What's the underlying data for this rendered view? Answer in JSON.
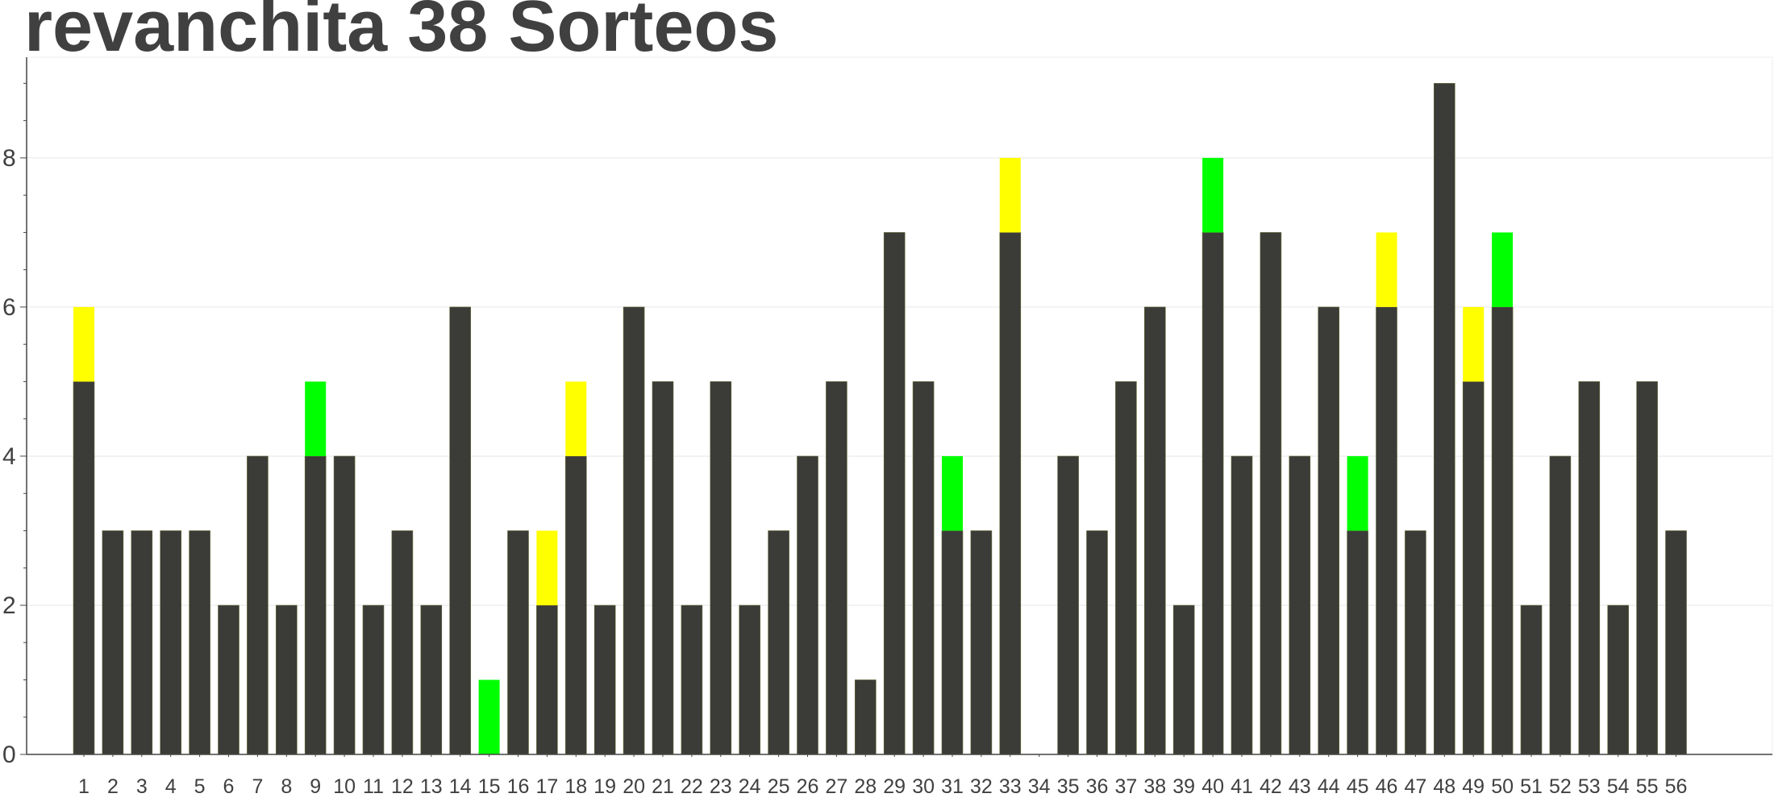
{
  "chart_data": {
    "type": "bar",
    "title": "revanchita 38 Sorteos",
    "xlabel": "",
    "ylabel": "",
    "ylim": [
      0,
      9.35
    ],
    "y_ticks": [
      0,
      2,
      4,
      6,
      8
    ],
    "grid": true,
    "stacked": true,
    "categories": [
      "1",
      "2",
      "3",
      "4",
      "5",
      "6",
      "7",
      "8",
      "9",
      "10",
      "11",
      "12",
      "13",
      "14",
      "15",
      "16",
      "17",
      "18",
      "19",
      "20",
      "21",
      "22",
      "23",
      "24",
      "25",
      "26",
      "27",
      "28",
      "29",
      "30",
      "31",
      "32",
      "33",
      "34",
      "35",
      "36",
      "37",
      "38",
      "39",
      "40",
      "41",
      "42",
      "43",
      "44",
      "45",
      "46",
      "47",
      "48",
      "49",
      "50",
      "51",
      "52",
      "53",
      "54",
      "55",
      "56"
    ],
    "series": [
      {
        "color": "#3b3b38",
        "values": [
          5,
          3,
          3,
          3,
          3,
          2,
          4,
          2,
          4,
          4,
          2,
          3,
          2,
          6,
          0,
          3,
          2,
          4,
          2,
          6,
          5,
          2,
          5,
          2,
          3,
          4,
          5,
          1,
          7,
          5,
          3,
          3,
          7,
          0,
          4,
          3,
          5,
          6,
          2,
          7,
          4,
          7,
          4,
          6,
          3,
          6,
          3,
          9,
          5,
          6,
          2,
          4,
          5,
          2,
          5,
          3
        ]
      },
      {
        "color": "#ffff00",
        "values": [
          1,
          0,
          0,
          0,
          0,
          0,
          0,
          0,
          0,
          0,
          0,
          0,
          0,
          0,
          0,
          0,
          1,
          1,
          0,
          0,
          0,
          0,
          0,
          0,
          0,
          0,
          0,
          0,
          0,
          0,
          0,
          0,
          1,
          0,
          0,
          0,
          0,
          0,
          0,
          0,
          0,
          0,
          0,
          0,
          0,
          1,
          0,
          0,
          1,
          0,
          0,
          0,
          0,
          0,
          0,
          0
        ]
      },
      {
        "color": "#00ff00",
        "values": [
          0,
          0,
          0,
          0,
          0,
          0,
          0,
          0,
          1,
          0,
          0,
          0,
          0,
          0,
          1,
          0,
          0,
          0,
          0,
          0,
          0,
          0,
          0,
          0,
          0,
          0,
          0,
          0,
          0,
          0,
          1,
          0,
          0,
          0,
          0,
          0,
          0,
          0,
          0,
          1,
          0,
          0,
          0,
          0,
          1,
          0,
          0,
          0,
          0,
          1,
          0,
          0,
          0,
          0,
          0,
          0
        ]
      }
    ]
  }
}
